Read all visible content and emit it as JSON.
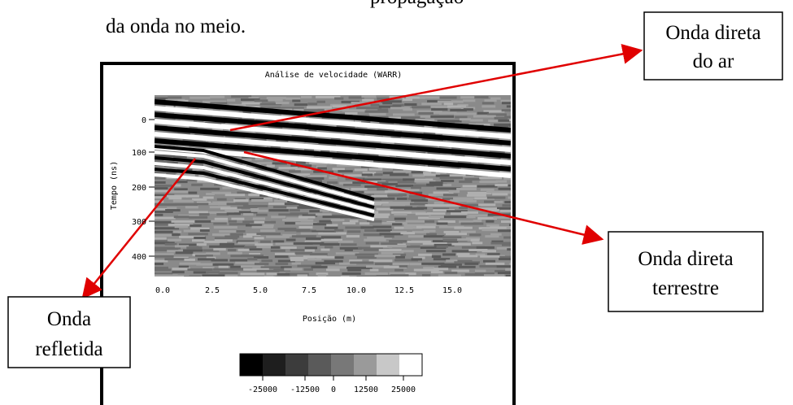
{
  "caption": {
    "line_above": "propagação",
    "line": "da onda no meio."
  },
  "figure": {
    "title": "Análise de velocidade (WARR)",
    "y_label": "Tempo (ns)",
    "x_label": "Posição (m)",
    "y_ticks": [
      "0",
      "100",
      "200",
      "300",
      "400"
    ],
    "x_ticks": [
      "0.0",
      "2.5",
      "5.0",
      "7.5",
      "10.0",
      "12.5",
      "15.0"
    ],
    "colorbar_ticks": [
      "-25000",
      "-12500",
      "0",
      "12500",
      "25000"
    ]
  },
  "annotations": [
    {
      "lines": [
        "Onda direta",
        "do ar"
      ]
    },
    {
      "lines": [
        "Onda direta",
        "terrestre"
      ]
    },
    {
      "lines": [
        "Onda",
        "refletida"
      ]
    }
  ]
}
